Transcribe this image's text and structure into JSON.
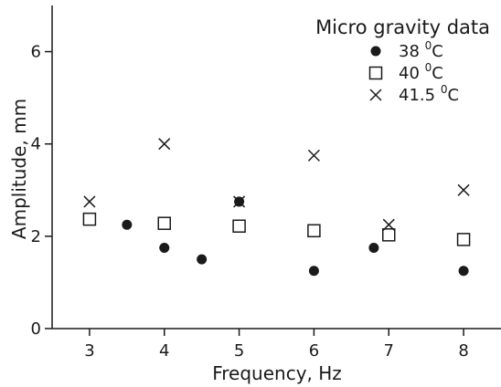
{
  "chart_data": {
    "type": "scatter",
    "title": "",
    "xlabel": "Frequency, Hz",
    "ylabel": "Amplitude, mm",
    "xlim": [
      2.5,
      8.5
    ],
    "ylim": [
      0,
      7
    ],
    "xticks": [
      3,
      4,
      5,
      6,
      7,
      8
    ],
    "yticks": [
      0,
      2,
      4,
      6
    ],
    "grid": false,
    "legend": {
      "title": "Micro gravity data",
      "position": "top-right"
    },
    "series": [
      {
        "name": "38 0C",
        "label_main": "38 ",
        "label_sup": "0",
        "label_unit": "C",
        "marker": "filled-circle",
        "points": [
          {
            "x": 3.5,
            "y": 2.25
          },
          {
            "x": 4.0,
            "y": 1.75
          },
          {
            "x": 4.5,
            "y": 1.5
          },
          {
            "x": 5.0,
            "y": 2.75
          },
          {
            "x": 6.0,
            "y": 1.25
          },
          {
            "x": 6.8,
            "y": 1.75
          },
          {
            "x": 8.0,
            "y": 1.25
          }
        ]
      },
      {
        "name": "40 0C",
        "label_main": "40 ",
        "label_sup": "0",
        "label_unit": "C",
        "marker": "open-square",
        "points": [
          {
            "x": 3.0,
            "y": 2.37
          },
          {
            "x": 4.0,
            "y": 2.28
          },
          {
            "x": 5.0,
            "y": 2.22
          },
          {
            "x": 6.0,
            "y": 2.12
          },
          {
            "x": 7.0,
            "y": 2.03
          },
          {
            "x": 8.0,
            "y": 1.93
          }
        ]
      },
      {
        "name": "41.5 0C",
        "label_main": "41.5 ",
        "label_sup": "0",
        "label_unit": "C",
        "marker": "cross",
        "points": [
          {
            "x": 3.0,
            "y": 2.75
          },
          {
            "x": 4.0,
            "y": 4.0
          },
          {
            "x": 5.0,
            "y": 2.75
          },
          {
            "x": 6.0,
            "y": 3.75
          },
          {
            "x": 7.0,
            "y": 2.25
          },
          {
            "x": 8.0,
            "y": 3.0
          }
        ]
      }
    ]
  }
}
